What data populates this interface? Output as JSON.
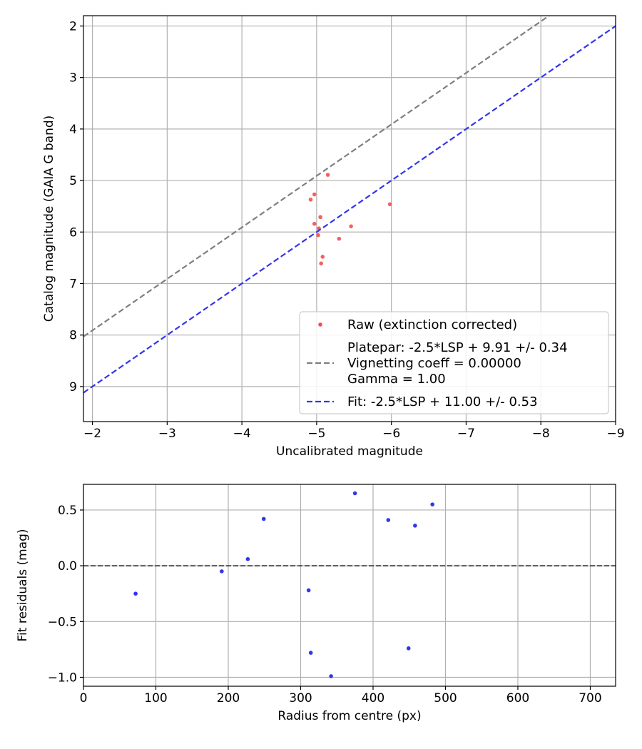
{
  "chart_data": [
    {
      "type": "scatter",
      "xlabel": "Uncalibrated magnitude",
      "ylabel": "Catalog magnitude (GAIA G band)",
      "xlim": [
        -1.88,
        -9.0
      ],
      "ylim": [
        9.68,
        1.8
      ],
      "xticks": [
        -2,
        -3,
        -4,
        -5,
        -6,
        -7,
        -8,
        -9
      ],
      "yticks": [
        2,
        3,
        4,
        5,
        6,
        7,
        8,
        9
      ],
      "xtick_labels": [
        "−2",
        "−3",
        "−4",
        "−5",
        "−6",
        "−7",
        "−8",
        "−9"
      ],
      "ytick_labels": [
        "2",
        "3",
        "4",
        "5",
        "6",
        "7",
        "8",
        "9"
      ],
      "grid": true,
      "legend_position": "lower-right",
      "series": [
        {
          "name": "Raw (extinction corrected)",
          "kind": "points",
          "color": "#f05050",
          "x": [
            -5.15,
            -4.97,
            -4.92,
            -5.05,
            -4.97,
            -5.03,
            -5.02,
            -5.46,
            -5.3,
            -5.08,
            -5.06,
            -5.98
          ],
          "y": [
            4.89,
            5.27,
            5.37,
            5.71,
            5.84,
            5.93,
            6.06,
            5.89,
            6.13,
            6.48,
            6.61,
            5.46
          ]
        },
        {
          "name": "Platepar line",
          "kind": "line",
          "color": "#7f7f7f",
          "intercept": 9.91,
          "slope": 1.0
        },
        {
          "name": "Fit line",
          "kind": "line",
          "color": "#3434ee",
          "intercept": 11.0,
          "slope": 1.0
        }
      ],
      "legend": [
        {
          "marker": "dot",
          "color": "#f05050",
          "lines": [
            "Raw (extinction corrected)"
          ]
        },
        {
          "marker": "dash",
          "color": "#7f7f7f",
          "lines": [
            "Platepar: -2.5*LSP + 9.91 +/- 0.34",
            "Vignetting coeff = 0.00000",
            "Gamma = 1.00"
          ]
        },
        {
          "marker": "dash",
          "color": "#3434ee",
          "lines": [
            "Fit: -2.5*LSP + 11.00 +/- 0.53"
          ]
        }
      ]
    },
    {
      "type": "scatter",
      "xlabel": "Radius from centre (px)",
      "ylabel": "Fit residuals (mag)",
      "xlim": [
        0,
        735
      ],
      "ylim": [
        -1.08,
        0.73
      ],
      "xticks": [
        0,
        100,
        200,
        300,
        400,
        500,
        600,
        700
      ],
      "yticks": [
        -1.0,
        -0.5,
        0.0,
        0.5
      ],
      "xtick_labels": [
        "0",
        "100",
        "200",
        "300",
        "400",
        "500",
        "600",
        "700"
      ],
      "ytick_labels": [
        "−1.0",
        "−0.5",
        "0.0",
        "0.5"
      ],
      "grid": true,
      "zero_line": {
        "y": 0.0,
        "color": "#555555"
      },
      "series": [
        {
          "name": "Residuals",
          "kind": "points",
          "color": "#1f1fe6",
          "x": [
            72,
            191,
            227,
            249,
            311,
            314,
            342,
            375,
            421,
            449,
            458,
            482
          ],
          "y": [
            -0.25,
            -0.05,
            0.06,
            0.42,
            -0.22,
            -0.78,
            -0.99,
            0.65,
            0.41,
            -0.74,
            0.36,
            0.55
          ]
        }
      ]
    }
  ]
}
